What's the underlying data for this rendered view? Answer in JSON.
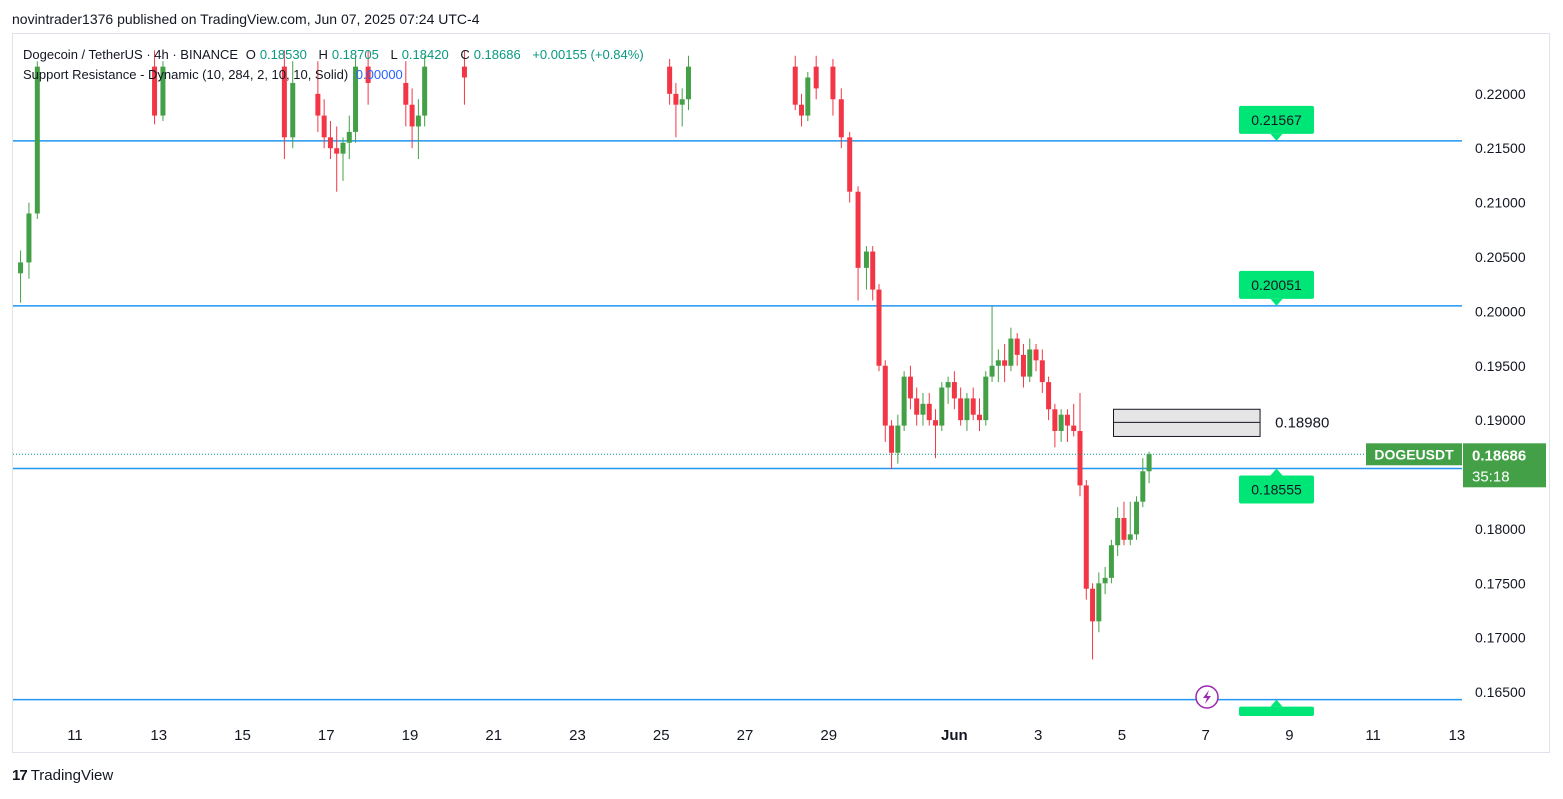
{
  "header": {
    "published": "novintrader1376 published on TradingView.com, Jun 07, 2025 07:24 UTC-4"
  },
  "legend": {
    "symbol": "Dogecoin / TetherUS · 4h · BINANCE",
    "open_label": "O",
    "open": "0.18530",
    "high_label": "H",
    "high": "0.18705",
    "low_label": "L",
    "low": "0.18420",
    "close_label": "C",
    "close": "0.18686",
    "change": "+0.00155 (+0.84%)",
    "indicator": "Support Resistance - Dynamic (10, 284, 2, 10, 10, Solid)",
    "indicator_value": "0.00000"
  },
  "footer": {
    "logo": "17",
    "brand": "TradingView"
  },
  "colors": {
    "up": "#089981",
    "up_body": "#43a047",
    "down": "#f23645",
    "sr_line": "#2196f3",
    "sr_label_bg": "#00e676",
    "price_tag_bg": "#43a047",
    "grid": "#ffffff"
  },
  "chart_data": {
    "type": "candlestick",
    "symbol": "DOGEUSDT",
    "interval": "4h",
    "ylim": [
      0.1628,
      0.2255
    ],
    "y_ticks": [
      "0.22000",
      "0.21500",
      "0.21000",
      "0.20500",
      "0.20000",
      "0.19500",
      "0.19000",
      "0.18500",
      "0.18000",
      "0.17500",
      "0.17000",
      "0.16500"
    ],
    "x_ticks": [
      {
        "label": "11",
        "day": 11
      },
      {
        "label": "13",
        "day": 13
      },
      {
        "label": "15",
        "day": 15
      },
      {
        "label": "17",
        "day": 17
      },
      {
        "label": "19",
        "day": 19
      },
      {
        "label": "21",
        "day": 21
      },
      {
        "label": "23",
        "day": 23
      },
      {
        "label": "25",
        "day": 25
      },
      {
        "label": "27",
        "day": 27
      },
      {
        "label": "29",
        "day": 29
      },
      {
        "label": "Jun",
        "day": 32
      },
      {
        "label": "3",
        "day": 34
      },
      {
        "label": "5",
        "day": 36
      },
      {
        "label": "7",
        "day": 38
      },
      {
        "label": "9",
        "day": 40
      },
      {
        "label": "11",
        "day": 42
      },
      {
        "label": "13",
        "day": 44
      }
    ],
    "support_resistance": [
      {
        "price": 0.21567,
        "label": "0.21567"
      },
      {
        "price": 0.20051,
        "label": "0.20051"
      },
      {
        "price": 0.18555,
        "label": "0.18555"
      },
      {
        "price": 0.1643,
        "label": ""
      }
    ],
    "zone": {
      "top": 0.191,
      "bottom": 0.1885,
      "mid": 0.1898,
      "label": "0.18980",
      "start_day": 35.8,
      "end_day": 39.3
    },
    "last_price": {
      "value": 0.18686,
      "tag": "DOGEUSDT",
      "price_label": "0.18686",
      "countdown": "35:18"
    },
    "candles": [
      [
        9.7,
        0.2035,
        0.2056,
        0.2008,
        0.2045
      ],
      [
        9.9,
        0.2045,
        0.21,
        0.203,
        0.209
      ],
      [
        10.1,
        0.209,
        0.223,
        0.2085,
        0.2225
      ],
      [
        12.9,
        0.2225,
        0.224,
        0.2172,
        0.218
      ],
      [
        13.1,
        0.218,
        0.223,
        0.2175,
        0.2225
      ],
      [
        16.0,
        0.2225,
        0.224,
        0.214,
        0.216
      ],
      [
        16.2,
        0.216,
        0.223,
        0.215,
        0.221
      ],
      [
        16.8,
        0.22,
        0.223,
        0.2165,
        0.218
      ],
      [
        16.95,
        0.218,
        0.2195,
        0.215,
        0.216
      ],
      [
        17.1,
        0.216,
        0.2175,
        0.214,
        0.215
      ],
      [
        17.25,
        0.215,
        0.217,
        0.211,
        0.2145
      ],
      [
        17.4,
        0.2145,
        0.216,
        0.212,
        0.2155
      ],
      [
        17.55,
        0.2155,
        0.218,
        0.214,
        0.2165
      ],
      [
        17.7,
        0.2165,
        0.2235,
        0.2155,
        0.2225
      ],
      [
        18.0,
        0.2225,
        0.224,
        0.219,
        0.221
      ],
      [
        18.9,
        0.221,
        0.223,
        0.217,
        0.219
      ],
      [
        19.05,
        0.219,
        0.2205,
        0.215,
        0.217
      ],
      [
        19.2,
        0.217,
        0.2195,
        0.214,
        0.218
      ],
      [
        19.35,
        0.218,
        0.2235,
        0.217,
        0.2225
      ],
      [
        20.3,
        0.2225,
        0.224,
        0.219,
        0.2215
      ],
      [
        25.2,
        0.2225,
        0.2232,
        0.219,
        0.22
      ],
      [
        25.35,
        0.22,
        0.221,
        0.216,
        0.219
      ],
      [
        25.5,
        0.219,
        0.2205,
        0.217,
        0.2195
      ],
      [
        25.65,
        0.2195,
        0.2235,
        0.2185,
        0.2225
      ],
      [
        28.2,
        0.2225,
        0.2235,
        0.2185,
        0.219
      ],
      [
        28.35,
        0.219,
        0.22,
        0.217,
        0.218
      ],
      [
        28.5,
        0.218,
        0.222,
        0.2175,
        0.2215
      ],
      [
        28.7,
        0.2225,
        0.2235,
        0.2195,
        0.2205
      ],
      [
        29.1,
        0.2225,
        0.2232,
        0.218,
        0.2195
      ],
      [
        29.3,
        0.2195,
        0.2205,
        0.215,
        0.216
      ],
      [
        29.5,
        0.216,
        0.2165,
        0.21,
        0.211
      ],
      [
        29.7,
        0.211,
        0.2115,
        0.201,
        0.204
      ],
      [
        29.9,
        0.204,
        0.206,
        0.202,
        0.2055
      ],
      [
        30.05,
        0.2055,
        0.206,
        0.201,
        0.202
      ],
      [
        30.2,
        0.202,
        0.2025,
        0.1945,
        0.195
      ],
      [
        30.35,
        0.195,
        0.1955,
        0.188,
        0.1895
      ],
      [
        30.5,
        0.1895,
        0.19,
        0.1855,
        0.187
      ],
      [
        30.65,
        0.187,
        0.1905,
        0.186,
        0.1895
      ],
      [
        30.8,
        0.1895,
        0.1945,
        0.189,
        0.194
      ],
      [
        30.95,
        0.194,
        0.195,
        0.191,
        0.192
      ],
      [
        31.1,
        0.192,
        0.193,
        0.1895,
        0.1905
      ],
      [
        31.25,
        0.1905,
        0.1925,
        0.1895,
        0.1915
      ],
      [
        31.4,
        0.1915,
        0.1925,
        0.1895,
        0.19
      ],
      [
        31.55,
        0.19,
        0.191,
        0.1865,
        0.1895
      ],
      [
        31.7,
        0.1895,
        0.1935,
        0.189,
        0.193
      ],
      [
        31.85,
        0.193,
        0.194,
        0.1915,
        0.1935
      ],
      [
        32.0,
        0.1935,
        0.1945,
        0.191,
        0.192
      ],
      [
        32.15,
        0.192,
        0.193,
        0.1895,
        0.19
      ],
      [
        32.3,
        0.19,
        0.1925,
        0.189,
        0.192
      ],
      [
        32.45,
        0.192,
        0.193,
        0.19,
        0.1905
      ],
      [
        32.6,
        0.1905,
        0.192,
        0.189,
        0.19
      ],
      [
        32.75,
        0.19,
        0.1945,
        0.1895,
        0.194
      ],
      [
        32.9,
        0.194,
        0.2005,
        0.1935,
        0.195
      ],
      [
        33.05,
        0.195,
        0.1965,
        0.1935,
        0.1955
      ],
      [
        33.2,
        0.1955,
        0.197,
        0.1935,
        0.195
      ],
      [
        33.35,
        0.195,
        0.1985,
        0.1945,
        0.1975
      ],
      [
        33.5,
        0.1975,
        0.198,
        0.195,
        0.196
      ],
      [
        33.65,
        0.196,
        0.197,
        0.193,
        0.194
      ],
      [
        33.8,
        0.194,
        0.1975,
        0.1935,
        0.1965
      ],
      [
        33.95,
        0.1965,
        0.197,
        0.1945,
        0.1955
      ],
      [
        34.1,
        0.1955,
        0.1965,
        0.1925,
        0.1935
      ],
      [
        34.25,
        0.1935,
        0.194,
        0.19,
        0.191
      ],
      [
        34.4,
        0.191,
        0.1915,
        0.1875,
        0.189
      ],
      [
        34.55,
        0.189,
        0.191,
        0.188,
        0.1905
      ],
      [
        34.7,
        0.1905,
        0.191,
        0.188,
        0.1895
      ],
      [
        34.85,
        0.1895,
        0.1915,
        0.1885,
        0.189
      ],
      [
        35.0,
        0.189,
        0.1925,
        0.183,
        0.184
      ],
      [
        35.15,
        0.184,
        0.1845,
        0.1735,
        0.1745
      ],
      [
        35.3,
        0.1745,
        0.175,
        0.168,
        0.1715
      ],
      [
        35.45,
        0.1715,
        0.176,
        0.1705,
        0.175
      ],
      [
        35.6,
        0.175,
        0.1765,
        0.174,
        0.1755
      ],
      [
        35.75,
        0.1755,
        0.179,
        0.175,
        0.1785
      ],
      [
        35.9,
        0.1785,
        0.182,
        0.1775,
        0.181
      ],
      [
        36.05,
        0.181,
        0.1825,
        0.1785,
        0.179
      ],
      [
        36.2,
        0.179,
        0.1825,
        0.1785,
        0.1795
      ],
      [
        36.35,
        0.1795,
        0.183,
        0.179,
        0.1825
      ],
      [
        36.5,
        0.1825,
        0.1865,
        0.182,
        0.1853
      ],
      [
        36.65,
        0.1853,
        0.1871,
        0.1842,
        0.18686
      ]
    ]
  }
}
